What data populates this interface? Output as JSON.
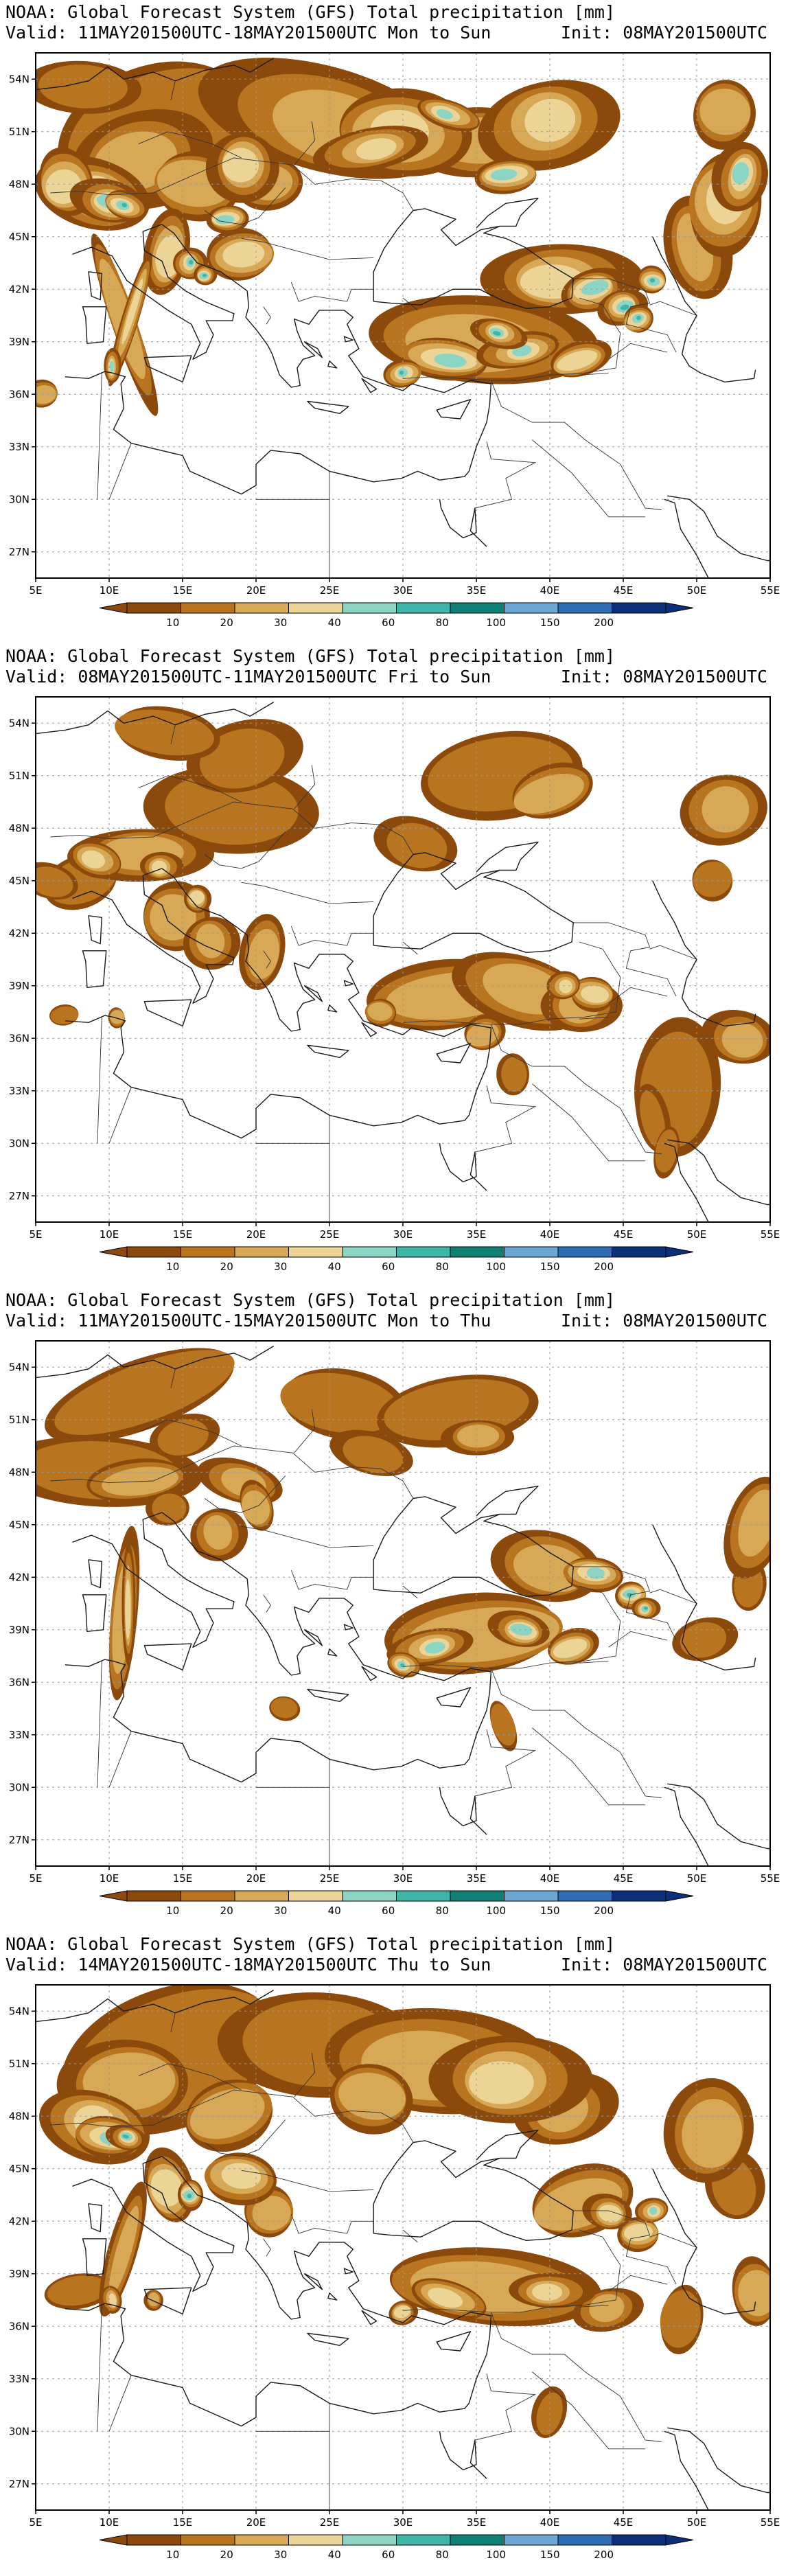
{
  "map": {
    "lon_labels": [
      "5E",
      "10E",
      "15E",
      "20E",
      "25E",
      "30E",
      "35E",
      "40E",
      "45E",
      "50E",
      "55E"
    ],
    "lat_labels": [
      "54N",
      "51N",
      "48N",
      "45N",
      "42N",
      "39N",
      "36N",
      "33N",
      "30N",
      "27N"
    ]
  },
  "colorbar": {
    "labels": [
      "10",
      "20",
      "30",
      "40",
      "60",
      "80",
      "100",
      "150",
      "200"
    ],
    "colors": [
      "#8b4a0c",
      "#b8741e",
      "#d7a855",
      "#ecd497",
      "#8cd5c4",
      "#3fb5a8",
      "#0e8076",
      "#6ba7d6",
      "#2e6db4",
      "#0c2f79"
    ]
  },
  "panels": [
    {
      "title": "NOAA: Global Forecast System (GFS) Total precipitation [mm]",
      "valid": "Valid: 11MAY201500UTC-18MAY201500UTC Mon to Sun",
      "init": "Init: 08MAY201500UTC",
      "variant": "heavy"
    },
    {
      "title": "NOAA: Global Forecast System (GFS) Total precipitation [mm]",
      "valid": "Valid: 08MAY201500UTC-11MAY201500UTC Fri to Sun",
      "init": "Init: 08MAY201500UTC",
      "variant": "medium"
    },
    {
      "title": "NOAA: Global Forecast System (GFS) Total precipitation [mm]",
      "valid": "Valid: 11MAY201500UTC-15MAY201500UTC Mon to Thu",
      "init": "Init: 08MAY201500UTC",
      "variant": "medium2"
    },
    {
      "title": "NOAA: Global Forecast System (GFS) Total precipitation [mm]",
      "valid": "Valid: 14MAY201500UTC-18MAY201500UTC Thu to Sun",
      "init": "Init: 08MAY201500UTC",
      "variant": "heavy2"
    }
  ]
}
